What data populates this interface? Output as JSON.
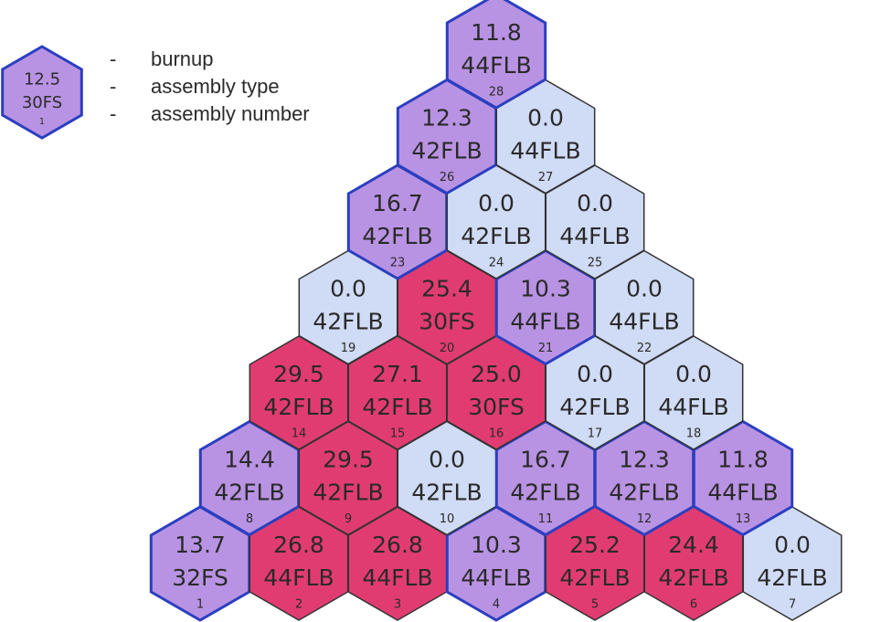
{
  "legend": {
    "hex": {
      "burnup": "12.5",
      "type": "30FS",
      "number": 1,
      "color": "#b993e3"
    },
    "items": [
      {
        "dash": "-",
        "label": "burnup"
      },
      {
        "dash": "-",
        "label": "assembly type"
      },
      {
        "dash": "-",
        "label": "assembly number"
      }
    ]
  },
  "hexes": [
    {
      "number": 1,
      "burnup": "13.7",
      "type": "32FS",
      "color": "#b993e3"
    },
    {
      "number": 2,
      "burnup": "26.8",
      "type": "44FLB",
      "color": "#e13c72"
    },
    {
      "number": 3,
      "burnup": "26.8",
      "type": "44FLB",
      "color": "#e13c72"
    },
    {
      "number": 4,
      "burnup": "10.3",
      "type": "44FLB",
      "color": "#b993e3"
    },
    {
      "number": 5,
      "burnup": "25.2",
      "type": "42FLB",
      "color": "#e13c72"
    },
    {
      "number": 6,
      "burnup": "24.4",
      "type": "42FLB",
      "color": "#e13c72"
    },
    {
      "number": 7,
      "burnup": "0.0",
      "type": "42FLB",
      "color": "#d0dbf5"
    },
    {
      "number": 8,
      "burnup": "14.4",
      "type": "42FLB",
      "color": "#b993e3"
    },
    {
      "number": 9,
      "burnup": "29.5",
      "type": "42FLB",
      "color": "#e13c72"
    },
    {
      "number": 10,
      "burnup": "0.0",
      "type": "42FLB",
      "color": "#d0dbf5"
    },
    {
      "number": 11,
      "burnup": "16.7",
      "type": "42FLB",
      "color": "#b993e3"
    },
    {
      "number": 12,
      "burnup": "12.3",
      "type": "42FLB",
      "color": "#b993e3"
    },
    {
      "number": 13,
      "burnup": "11.8",
      "type": "44FLB",
      "color": "#b993e3"
    },
    {
      "number": 14,
      "burnup": "29.5",
      "type": "42FLB",
      "color": "#e13c72"
    },
    {
      "number": 15,
      "burnup": "27.1",
      "type": "42FLB",
      "color": "#e13c72"
    },
    {
      "number": 16,
      "burnup": "25.0",
      "type": "30FS",
      "color": "#e13c72"
    },
    {
      "number": 17,
      "burnup": "0.0",
      "type": "42FLB",
      "color": "#d0dbf5"
    },
    {
      "number": 18,
      "burnup": "0.0",
      "type": "44FLB",
      "color": "#d0dbf5"
    },
    {
      "number": 19,
      "burnup": "0.0",
      "type": "42FLB",
      "color": "#d0dbf5"
    },
    {
      "number": 20,
      "burnup": "25.4",
      "type": "30FS",
      "color": "#e13c72"
    },
    {
      "number": 21,
      "burnup": "10.3",
      "type": "44FLB",
      "color": "#b993e3"
    },
    {
      "number": 22,
      "burnup": "0.0",
      "type": "44FLB",
      "color": "#d0dbf5"
    },
    {
      "number": 23,
      "burnup": "16.7",
      "type": "42FLB",
      "color": "#b993e3"
    },
    {
      "number": 24,
      "burnup": "0.0",
      "type": "42FLB",
      "color": "#d0dbf5"
    },
    {
      "number": 25,
      "burnup": "0.0",
      "type": "44FLB",
      "color": "#d0dbf5"
    },
    {
      "number": 26,
      "burnup": "12.3",
      "type": "42FLB",
      "color": "#b993e3"
    },
    {
      "number": 27,
      "burnup": "0.0",
      "type": "44FLB",
      "color": "#d0dbf5"
    },
    {
      "number": 28,
      "burnup": "11.8",
      "type": "44FLB",
      "color": "#b993e3"
    }
  ]
}
